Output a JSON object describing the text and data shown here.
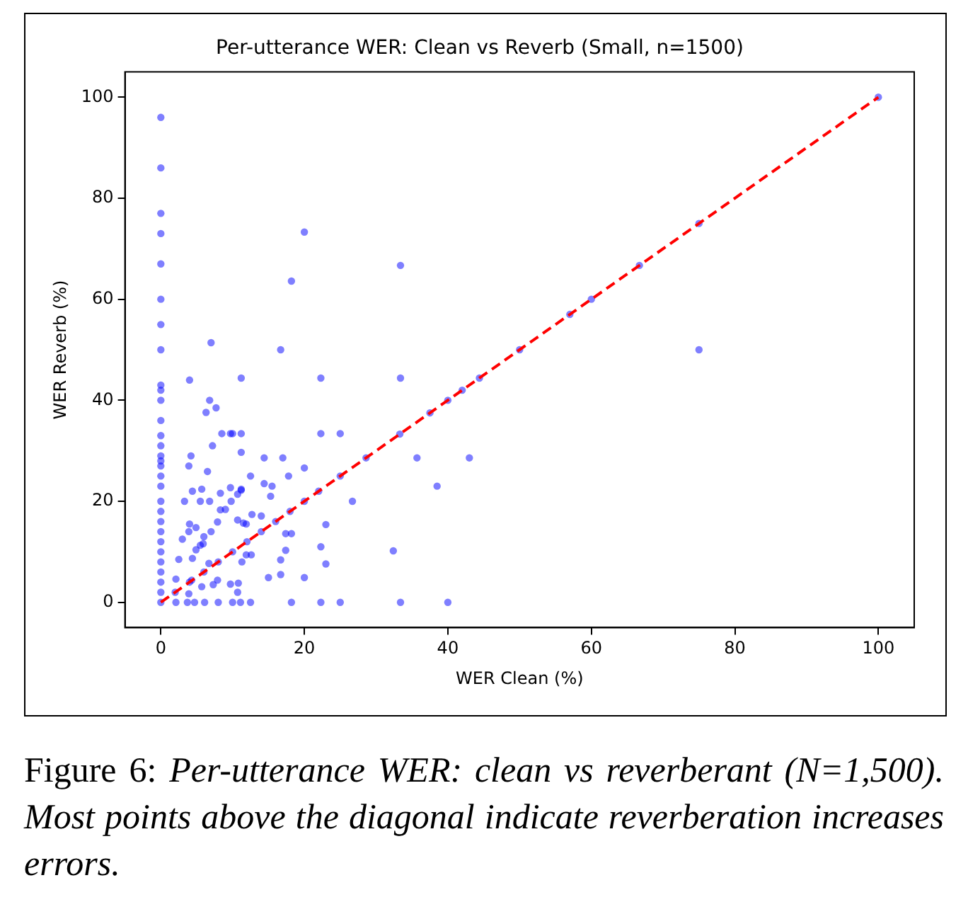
{
  "chart_data": {
    "type": "scatter",
    "title": "Per-utterance WER: Clean vs Reverb (Small, n=1500)",
    "xlabel": "WER Clean (%)",
    "ylabel": "WER Reverb (%)",
    "xlim": [
      -5,
      105
    ],
    "ylim": [
      -5,
      105
    ],
    "xticks": [
      0,
      20,
      40,
      60,
      80,
      100
    ],
    "yticks": [
      0,
      20,
      40,
      60,
      80,
      100
    ],
    "grid": false,
    "legend": false,
    "marker": "circle",
    "annotations": [
      "Figure 6: Per-utterance WER: clean vs reverberant (N=1,500). Most points above the diagonal indicate reverberation increases errors."
    ],
    "series": [
      {
        "type": "scatter",
        "color": "#0000ff",
        "x": [
          0,
          0,
          0,
          0,
          0,
          0,
          0,
          0,
          0,
          0,
          0,
          0,
          0,
          0,
          0,
          0,
          0,
          0,
          0,
          0,
          0,
          0,
          0,
          0,
          0,
          0,
          0,
          0,
          0,
          0,
          7,
          20,
          18.2,
          33.4,
          16.7,
          4,
          11.2,
          6.8,
          7.7,
          6.3,
          7.2,
          8.5,
          9.7,
          10,
          11.2,
          11.2,
          4.2,
          3.9,
          6.5,
          14.4,
          17,
          17.8,
          20,
          22.3,
          22.3,
          25,
          33.4,
          35.7,
          38.5,
          43,
          26.7,
          23,
          22.3,
          23,
          32.4,
          33.4,
          40,
          25,
          22.3,
          20,
          18.2,
          15,
          16.7,
          16.7,
          17.4,
          17.4,
          18.2,
          15.3,
          15.5,
          14.4,
          12.5,
          10.7,
          11.2,
          9.7,
          8.3,
          6.8,
          5.5,
          3.3,
          4.4,
          5.7,
          8.3,
          9,
          10.7,
          12.7,
          14,
          11.5,
          11.9,
          4,
          3.9,
          3,
          4.9,
          6,
          2.5,
          2.1,
          5.5,
          6.7,
          5.7,
          7.3,
          9.7,
          10.8,
          10.7,
          3.9,
          7.9,
          12.6,
          11.3,
          11.9,
          4.3,
          2.1,
          3.7,
          4.7,
          6.1,
          8,
          10,
          11.1,
          12.5,
          4.4,
          4.9,
          5.9,
          7,
          7.9,
          9.8,
          11.2,
          2,
          4,
          6,
          8,
          10,
          12,
          14,
          16,
          18,
          20,
          22,
          25,
          28.6,
          33.3,
          37.5,
          40,
          42,
          44.4,
          50,
          57,
          60,
          66.7,
          75,
          100,
          75
        ],
        "values": [
          96,
          86,
          77,
          73,
          67,
          60,
          55,
          50,
          43,
          42,
          40,
          36,
          33,
          31,
          29,
          28,
          27,
          25,
          23,
          20,
          18,
          16,
          14,
          12,
          10,
          8,
          6,
          4,
          2,
          0,
          51.4,
          73.3,
          63.6,
          66.7,
          50,
          44,
          44.4,
          40,
          38.5,
          37.6,
          31,
          33.4,
          33.4,
          33.4,
          33.4,
          29.7,
          29,
          27,
          25.9,
          28.6,
          28.6,
          25,
          26.6,
          44.4,
          33.4,
          33.4,
          44.4,
          28.6,
          23,
          28.6,
          20,
          15.4,
          11,
          7.6,
          10.2,
          0,
          0,
          0,
          0,
          4.9,
          0,
          4.9,
          5.5,
          8.4,
          10.3,
          13.6,
          13.6,
          21,
          23,
          23.5,
          25,
          21.4,
          22.2,
          22.7,
          21.6,
          20,
          20,
          20,
          22,
          22.4,
          18.3,
          18.4,
          16.3,
          17.4,
          17.1,
          15.7,
          15.5,
          15.5,
          14,
          12.5,
          14.8,
          13,
          8.5,
          4.6,
          11.3,
          7.7,
          3.1,
          3.5,
          3.6,
          3.8,
          2,
          1.7,
          4.4,
          9.4,
          8,
          9.4,
          4.4,
          0,
          0,
          0,
          0,
          0,
          0,
          0,
          0,
          8.7,
          10.4,
          11.6,
          14,
          15.9,
          20,
          22.4,
          2,
          4,
          6,
          8,
          10,
          12,
          14,
          16,
          18,
          20,
          22,
          25,
          28.6,
          33.3,
          37.5,
          40,
          42,
          44.4,
          50,
          57,
          60,
          66.7,
          75,
          100,
          50
        ]
      },
      {
        "type": "line",
        "color": "#ff0000",
        "line_style": "dashed",
        "marker": "none",
        "x": [
          0,
          100
        ],
        "values": [
          0,
          100
        ]
      }
    ]
  }
}
